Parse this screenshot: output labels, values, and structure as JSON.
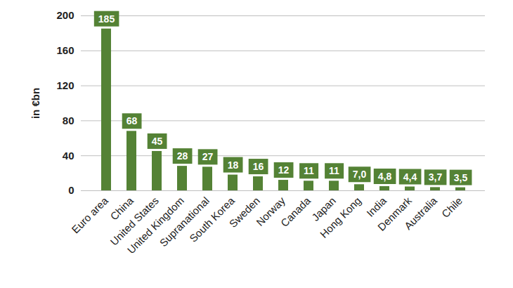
{
  "chart_data": {
    "type": "bar",
    "ylabel": "in €bn",
    "categories": [
      "Euro area",
      "China",
      "United States",
      "United Kingdom",
      "Supranational",
      "South Korea",
      "Sweden",
      "Norway",
      "Canada",
      "Japan",
      "Hong Kong",
      "India",
      "Denmark",
      "Australia",
      "Chile"
    ],
    "values": [
      185,
      68,
      45,
      28,
      27,
      18,
      16,
      12,
      11,
      11,
      7.0,
      4.8,
      4.4,
      3.7,
      3.5
    ],
    "value_labels": [
      "185",
      "68",
      "45",
      "28",
      "27",
      "18",
      "16",
      "12",
      "11",
      "11",
      "7,0",
      "4,8",
      "4,4",
      "3,7",
      "3,5"
    ],
    "color": "#548235",
    "ylim": [
      0,
      200
    ],
    "yticks": [
      0,
      40,
      80,
      120,
      160,
      200
    ],
    "grid": true,
    "data_labels": true
  }
}
